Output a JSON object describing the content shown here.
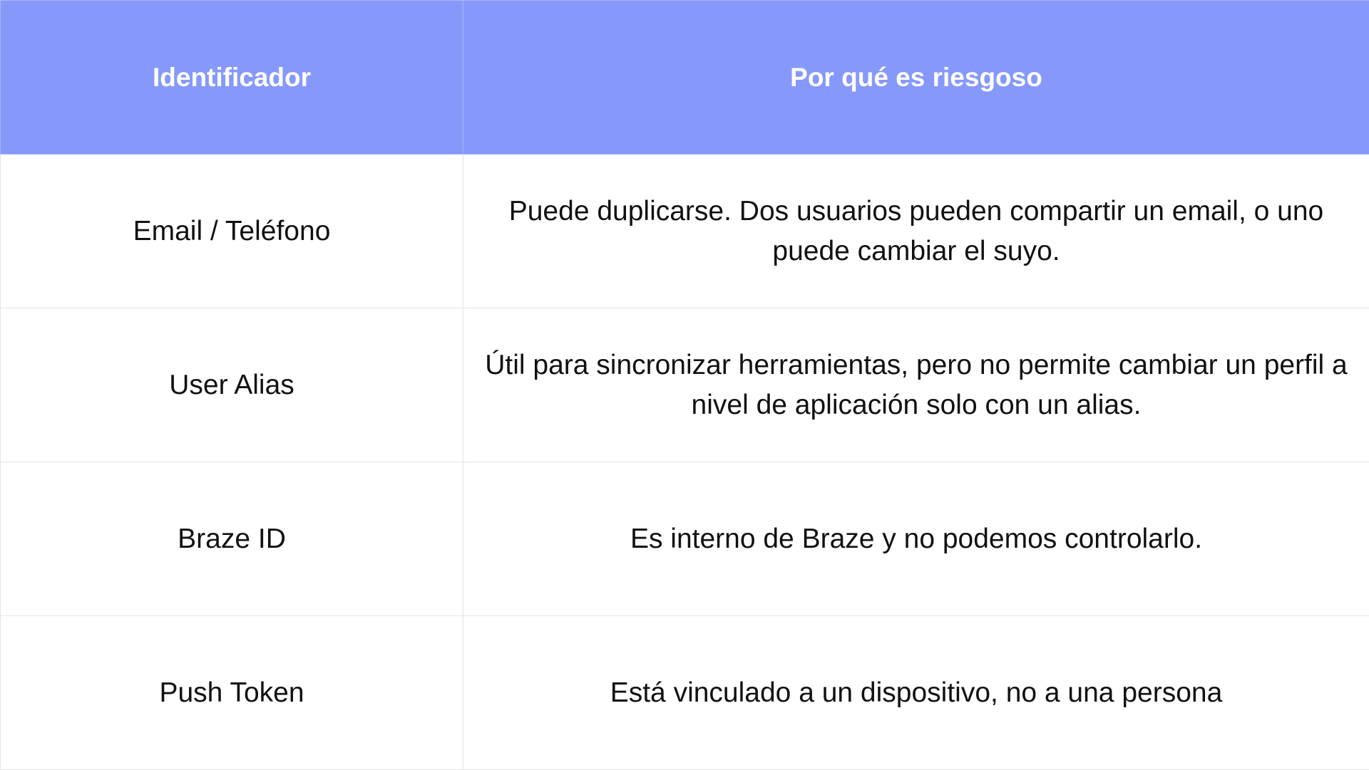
{
  "table": {
    "headers": [
      "Identificador",
      "Por qué es riesgoso"
    ],
    "rows": [
      {
        "identifier": "Email / Teléfono",
        "risk": "Puede duplicarse. Dos usuarios pueden compartir un email, o uno puede cambiar el suyo."
      },
      {
        "identifier": "User Alias",
        "risk": "Útil para sincronizar herramientas, pero no permite cambiar un perfil a nivel de aplicación solo con un alias."
      },
      {
        "identifier": "Braze ID",
        "risk": "Es interno de Braze y no podemos controlarlo."
      },
      {
        "identifier": "Push Token",
        "risk": "Está vinculado a un dispositivo, no a una persona"
      }
    ]
  },
  "colors": {
    "header_background": "#8699fb",
    "header_text": "#ffffff",
    "body_text": "#111111",
    "border": "#e4e4e4"
  }
}
